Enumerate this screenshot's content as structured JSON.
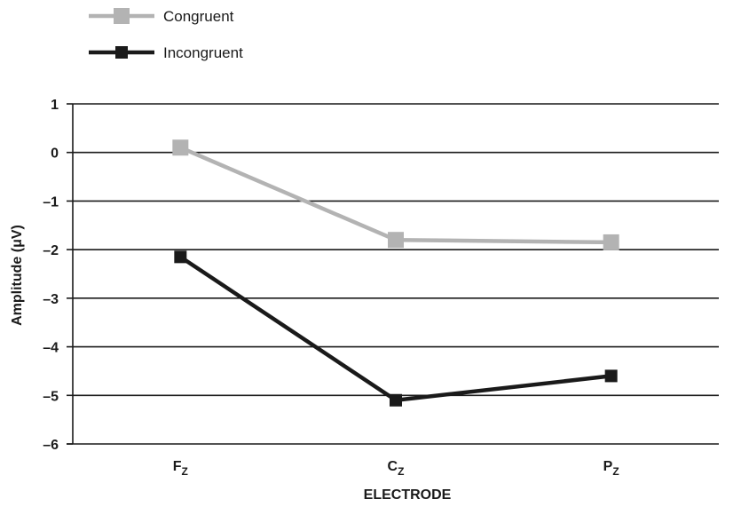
{
  "chart_data": {
    "type": "line",
    "xlabel": "ELECTRODE",
    "ylabel": "Amplitude (μV)",
    "categories": [
      {
        "main": "F",
        "sub": "Z"
      },
      {
        "main": "C",
        "sub": "Z"
      },
      {
        "main": "P",
        "sub": "Z"
      }
    ],
    "ylim": [
      -6,
      1
    ],
    "yticks": [
      1,
      0,
      -1,
      -2,
      -3,
      -4,
      -5,
      -6
    ],
    "ytick_labels": [
      "1",
      "0",
      "–1",
      "–2",
      "–3",
      "–4",
      "–5",
      "–6"
    ],
    "grid": true,
    "legend_position": "top-left",
    "series": [
      {
        "name": "Congruent",
        "values": [
          0.1,
          -1.8,
          -1.85
        ],
        "color": "#b3b3b3",
        "marker": "square"
      },
      {
        "name": "Incongruent",
        "values": [
          -2.15,
          -5.1,
          -4.6
        ],
        "color": "#1a1a1a",
        "marker": "square"
      }
    ]
  }
}
